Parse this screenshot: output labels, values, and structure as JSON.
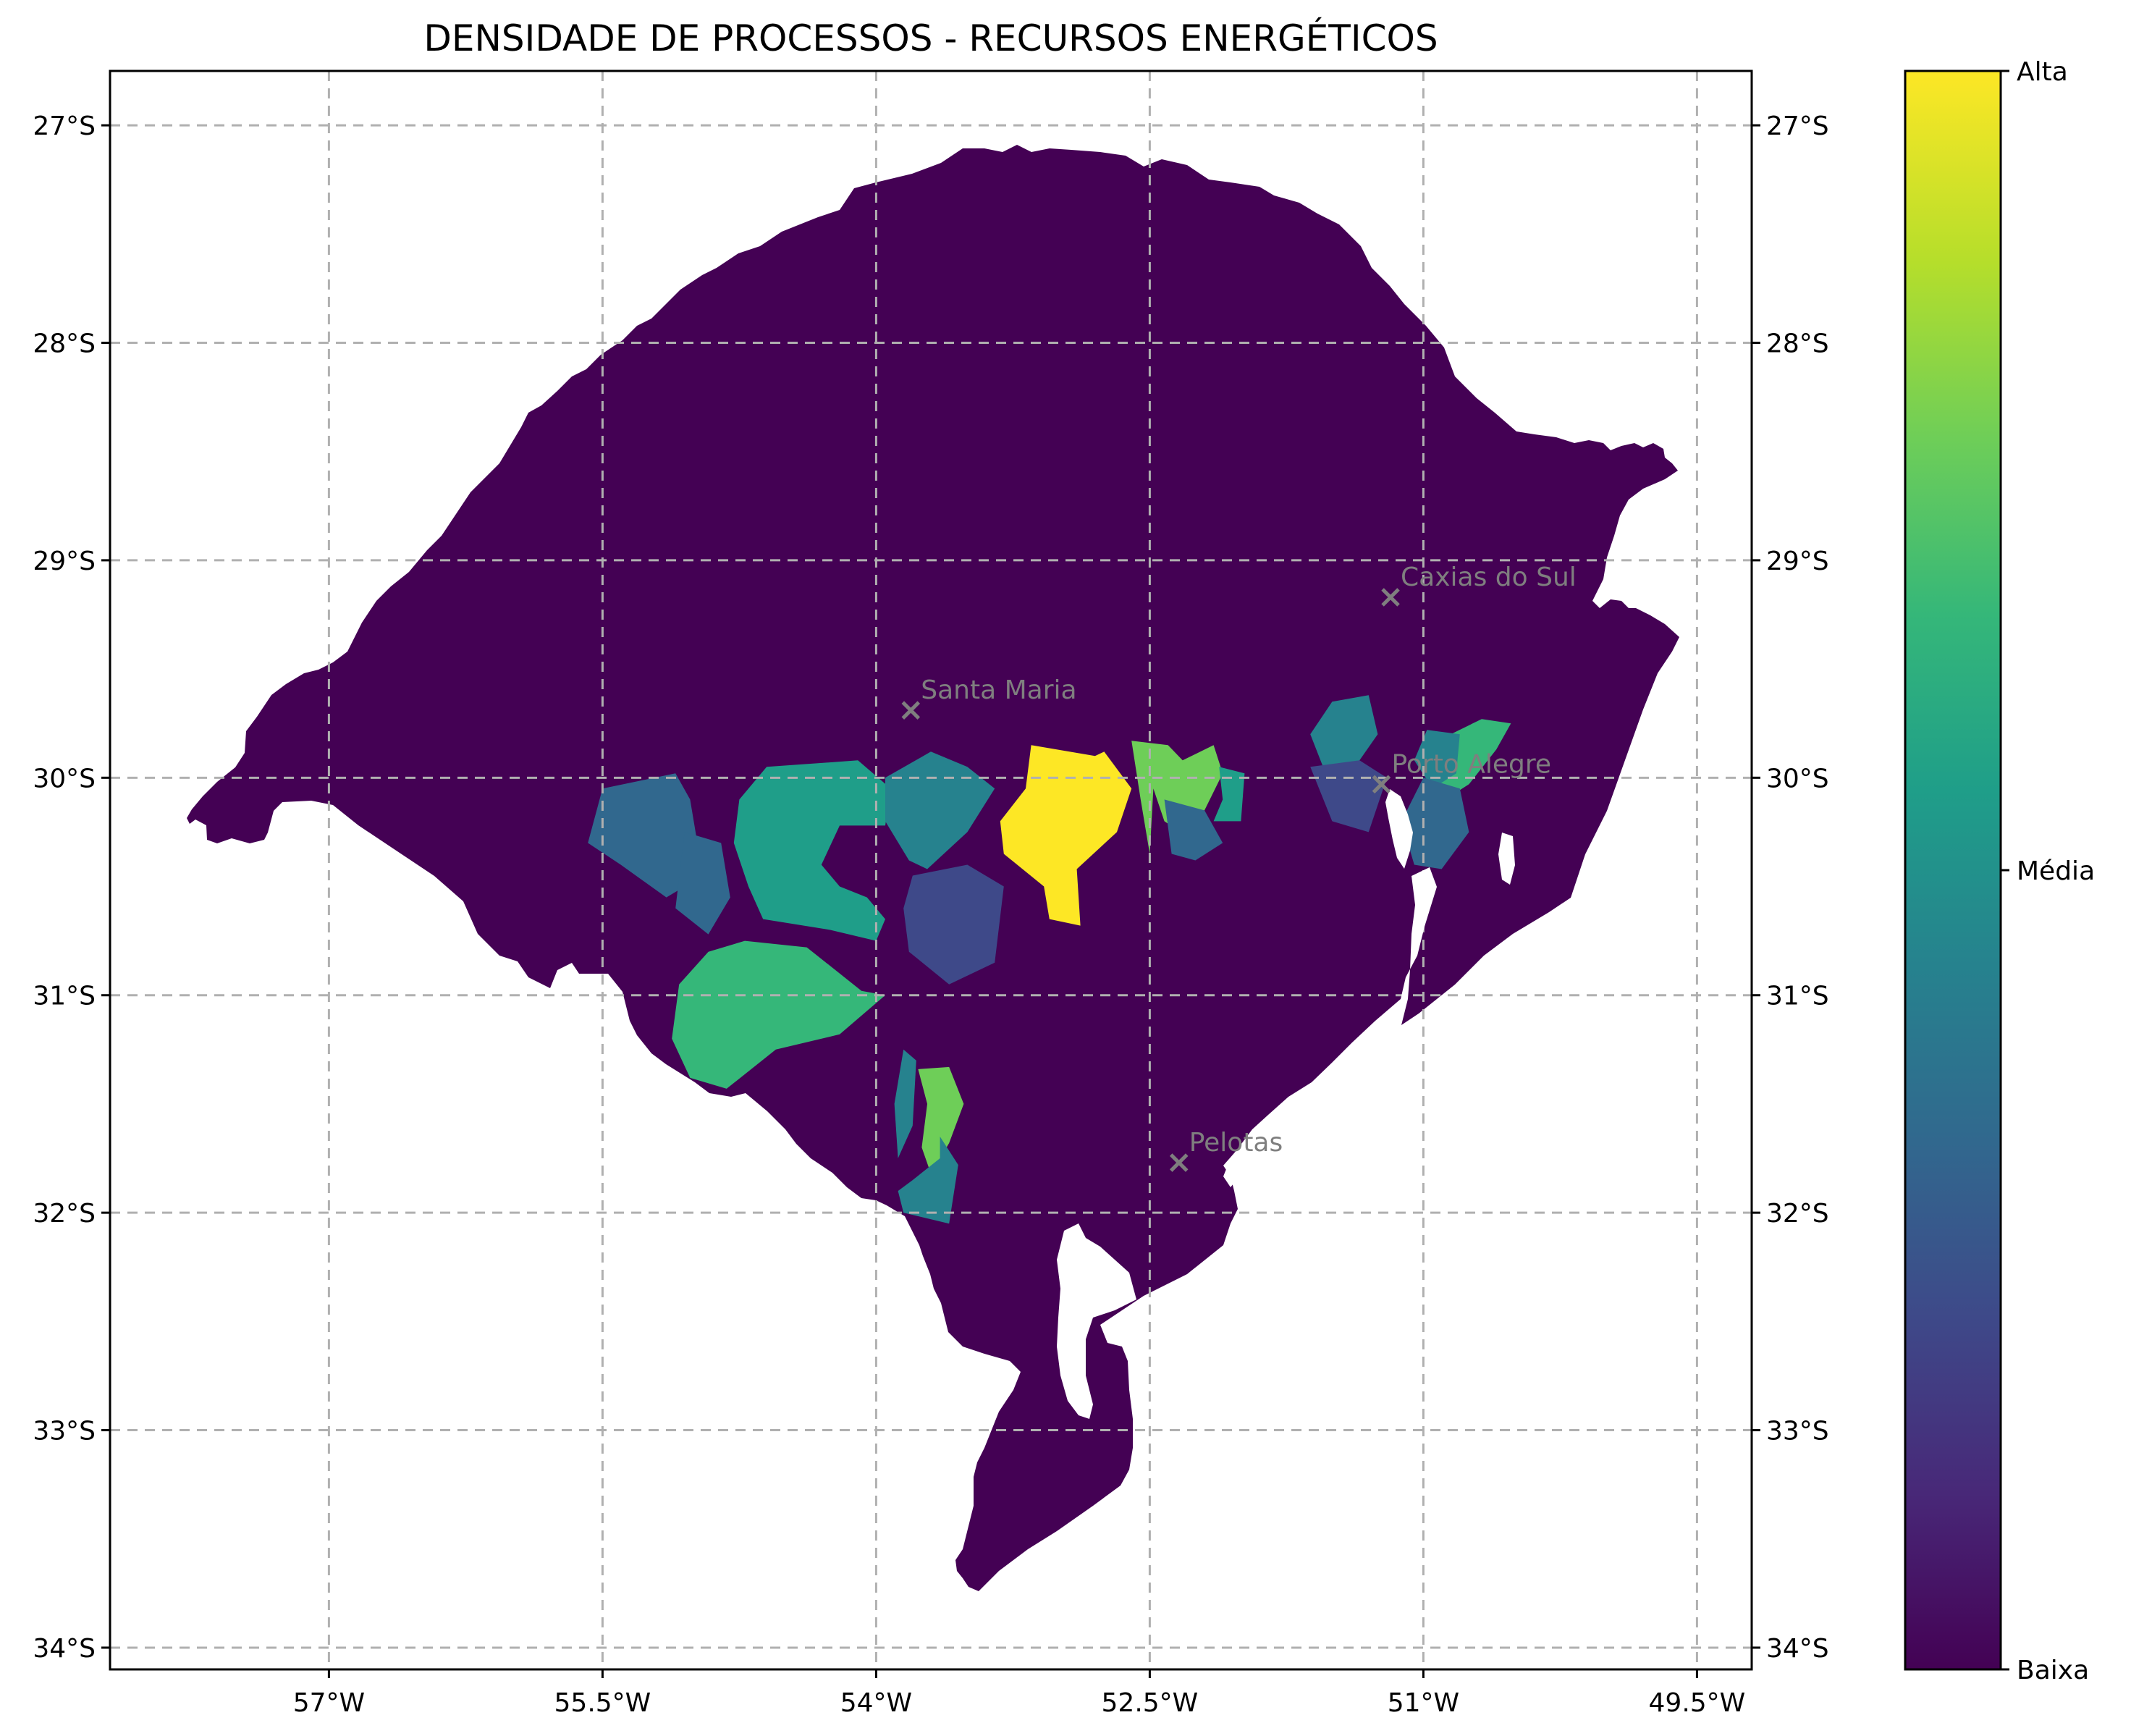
{
  "title": "DENSIDADE DE PROCESSOS - RECURSOS ENERGÉTICOS",
  "chart_data": {
    "type": "choropleth",
    "region": "Rio Grande do Sul",
    "colormap": "viridis",
    "grid": true,
    "xlim": [
      -58.2,
      -49.2
    ],
    "ylim": [
      -34.1,
      -26.75
    ],
    "x_ticks": [
      {
        "value": -57,
        "label": "57°W"
      },
      {
        "value": -55.5,
        "label": "55.5°W"
      },
      {
        "value": -54,
        "label": "54°W"
      },
      {
        "value": -52.5,
        "label": "52.5°W"
      },
      {
        "value": -51,
        "label": "51°W"
      },
      {
        "value": -49.5,
        "label": "49.5°W"
      }
    ],
    "y_ticks": [
      {
        "value": -27,
        "label": "27°S"
      },
      {
        "value": -28,
        "label": "28°S"
      },
      {
        "value": -29,
        "label": "29°S"
      },
      {
        "value": -30,
        "label": "30°S"
      },
      {
        "value": -31,
        "label": "31°S"
      },
      {
        "value": -32,
        "label": "32°S"
      },
      {
        "value": -33,
        "label": "33°S"
      },
      {
        "value": -34,
        "label": "34°S"
      }
    ],
    "colorbar": {
      "ticks": [
        {
          "value": 1.0,
          "label": "Alta"
        },
        {
          "value": 0.5,
          "label": "Média"
        },
        {
          "value": 0.0,
          "label": "Baixa"
        }
      ],
      "colors": [
        "#440154",
        "#482878",
        "#3e4989",
        "#31688e",
        "#26828e",
        "#1f9e89",
        "#35b779",
        "#6ece58",
        "#b5de2b",
        "#fde725"
      ]
    },
    "cities": [
      {
        "name": "Caxias do Sul",
        "lon": -51.18,
        "lat": -29.17
      },
      {
        "name": "Santa Maria",
        "lon": -53.81,
        "lat": -29.69
      },
      {
        "name": "Porto Alegre",
        "lon": -51.23,
        "lat": -30.03
      },
      {
        "name": "Pelotas",
        "lon": -52.34,
        "lat": -31.77
      }
    ],
    "regions": [
      {
        "level": 1.0,
        "lon": [
          -53.15,
          -52.8,
          -52.75,
          -52.6,
          -52.68,
          -52.9,
          -52.88,
          -53.05,
          -53.08,
          -53.3,
          -53.32,
          -53.18
        ],
        "lat": [
          -29.85,
          -29.9,
          -29.88,
          -30.05,
          -30.25,
          -30.42,
          -30.68,
          -30.65,
          -30.5,
          -30.35,
          -30.2,
          -30.05
        ]
      },
      {
        "level": 0.82,
        "lon": [
          -52.6,
          -52.4,
          -52.32,
          -52.15,
          -52.1,
          -52.2,
          -52.28,
          -52.42,
          -52.48,
          -52.5,
          -52.55
        ],
        "lat": [
          -29.83,
          -29.85,
          -29.92,
          -29.85,
          -29.98,
          -30.15,
          -30.28,
          -30.2,
          -30.05,
          -30.35,
          -30.1
        ]
      },
      {
        "level": 0.8,
        "lon": [
          -53.77,
          -53.6,
          -53.52,
          -53.6,
          -53.7,
          -53.75,
          -53.72
        ],
        "lat": [
          -31.34,
          -31.33,
          -31.5,
          -31.68,
          -31.82,
          -31.7,
          -31.5
        ]
      },
      {
        "level": 0.72,
        "lon": [
          -50.75,
          -50.6,
          -50.52,
          -50.68,
          -50.85,
          -50.95,
          -50.88
        ],
        "lat": [
          -30.03,
          -29.87,
          -29.75,
          -29.73,
          -29.8,
          -29.95,
          -30.1
        ]
      },
      {
        "level": 0.65,
        "lon": [
          -54.72,
          -54.38,
          -54.08,
          -53.95,
          -54.2,
          -54.55,
          -54.82,
          -55.02,
          -55.12,
          -55.08,
          -54.92
        ],
        "lat": [
          -30.75,
          -30.78,
          -30.98,
          -31.0,
          -31.18,
          -31.25,
          -31.43,
          -31.38,
          -31.2,
          -30.95,
          -30.8
        ]
      },
      {
        "level": 0.55,
        "lon": [
          -54.6,
          -54.1,
          -53.92,
          -53.95,
          -54.2,
          -54.3,
          -54.2,
          -54.05,
          -53.95,
          -54.0,
          -54.25,
          -54.62,
          -54.7,
          -54.78,
          -54.75
        ],
        "lat": [
          -29.95,
          -29.92,
          -30.05,
          -30.22,
          -30.22,
          -30.4,
          -30.5,
          -30.55,
          -30.65,
          -30.75,
          -30.7,
          -30.65,
          -30.5,
          -30.3,
          -30.1
        ]
      },
      {
        "level": 0.6,
        "lon": [
          -52.12,
          -51.98,
          -52.0,
          -52.15,
          -52.1
        ],
        "lat": [
          -29.95,
          -29.98,
          -30.2,
          -30.2,
          -30.1
        ]
      },
      {
        "level": 0.45,
        "lon": [
          -51.5,
          -51.3,
          -51.25,
          -51.4,
          -51.55,
          -51.62
        ],
        "lat": [
          -29.65,
          -29.62,
          -29.8,
          -29.98,
          -29.95,
          -29.8
        ]
      },
      {
        "level": 0.45,
        "lon": [
          -50.98,
          -50.8,
          -50.82,
          -50.95,
          -51.05
        ],
        "lat": [
          -29.78,
          -29.8,
          -29.98,
          -30.05,
          -29.92
        ]
      },
      {
        "level": 0.4,
        "lon": [
          -53.95,
          -53.7,
          -53.5,
          -53.35,
          -53.5,
          -53.72,
          -53.82,
          -53.95
        ],
        "lat": [
          -30.0,
          -29.88,
          -29.95,
          -30.05,
          -30.25,
          -30.42,
          -30.38,
          -30.2
        ]
      },
      {
        "level": 0.4,
        "lon": [
          -53.8,
          -53.65,
          -53.65,
          -53.55,
          -53.6,
          -53.85,
          -53.88
        ],
        "lat": [
          -31.85,
          -31.75,
          -31.65,
          -31.78,
          -32.05,
          -32.0,
          -31.9
        ]
      },
      {
        "level": 0.4,
        "lon": [
          -53.85,
          -53.78,
          -53.8,
          -53.88,
          -53.9
        ],
        "lat": [
          -31.25,
          -31.3,
          -31.6,
          -31.75,
          -31.5
        ]
      },
      {
        "level": 0.35,
        "lon": [
          -51.0,
          -50.8,
          -50.75,
          -50.9,
          -51.05,
          -51.12
        ],
        "lat": [
          -30.0,
          -30.05,
          -30.25,
          -30.42,
          -30.4,
          -30.2
        ]
      },
      {
        "level": 0.35,
        "lon": [
          -52.42,
          -52.2,
          -52.1,
          -52.25,
          -52.38
        ],
        "lat": [
          -30.1,
          -30.15,
          -30.3,
          -30.38,
          -30.35
        ]
      },
      {
        "level": 0.3,
        "lon": [
          -55.5,
          -55.1,
          -55.02,
          -54.95,
          -55.15,
          -55.4,
          -55.58
        ],
        "lat": [
          -30.05,
          -29.98,
          -30.1,
          -30.45,
          -30.55,
          -30.4,
          -30.3
        ]
      },
      {
        "level": 0.3,
        "lon": [
          -55.05,
          -54.85,
          -54.8,
          -54.92,
          -55.1
        ],
        "lat": [
          -30.25,
          -30.3,
          -30.55,
          -30.72,
          -30.6
        ]
      },
      {
        "level": 0.25,
        "lon": [
          -53.8,
          -53.5,
          -53.3,
          -53.35,
          -53.6,
          -53.82,
          -53.85
        ],
        "lat": [
          -30.45,
          -30.4,
          -30.5,
          -30.85,
          -30.95,
          -30.8,
          -30.6
        ]
      },
      {
        "level": 0.2,
        "lon": [
          -51.62,
          -51.35,
          -51.2,
          -51.3,
          -51.5
        ],
        "lat": [
          -29.95,
          -29.92,
          -30.0,
          -30.25,
          -30.2
        ]
      }
    ]
  }
}
